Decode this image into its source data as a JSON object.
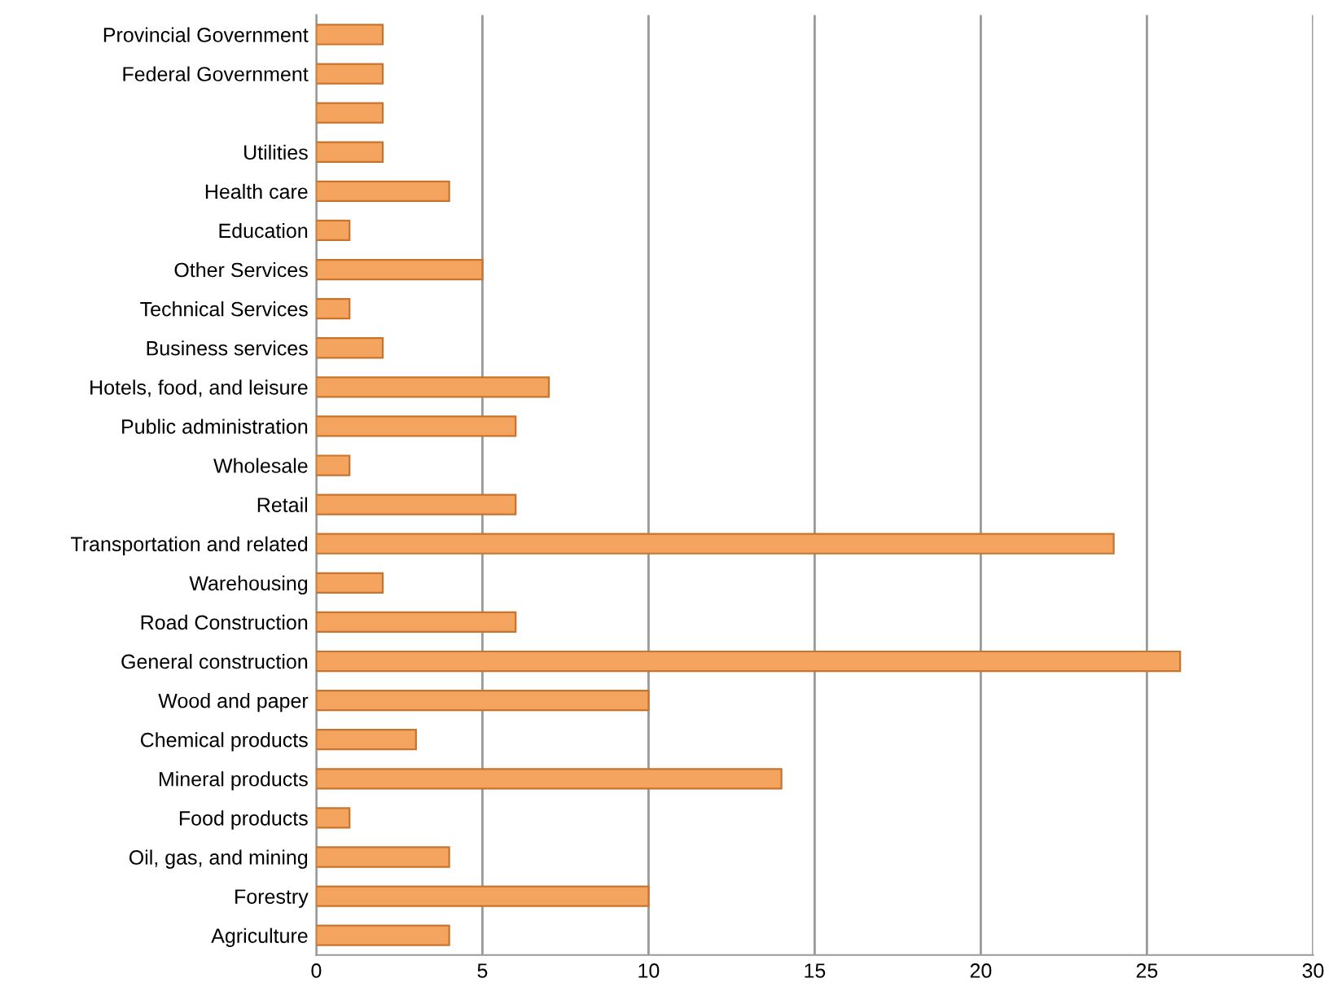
{
  "chart_data": {
    "type": "bar",
    "orientation": "horizontal",
    "categories": [
      "Provincial Government",
      "Federal Government",
      null,
      "Utilities",
      "Health care",
      "Education",
      "Other Services",
      "Technical Services",
      "Business services",
      "Hotels, food, and leisure",
      "Public administration",
      "Wholesale",
      "Retail",
      "Transportation and related",
      "Warehousing",
      "Road Construction",
      "General construction",
      "Wood and paper",
      "Chemical products",
      "Mineral products",
      "Food products",
      "Oil, gas, and mining",
      "Forestry",
      "Agriculture"
    ],
    "values": [
      2,
      2,
      2,
      2,
      4,
      1,
      5,
      1,
      2,
      7,
      6,
      1,
      6,
      24,
      2,
      6,
      26,
      10,
      3,
      14,
      1,
      4,
      10,
      4
    ],
    "color": "#f5a460",
    "xlim": [
      0,
      30
    ],
    "xticks": [
      0,
      5,
      10,
      15,
      20,
      25,
      30
    ],
    "grid": "x",
    "legend": false
  }
}
